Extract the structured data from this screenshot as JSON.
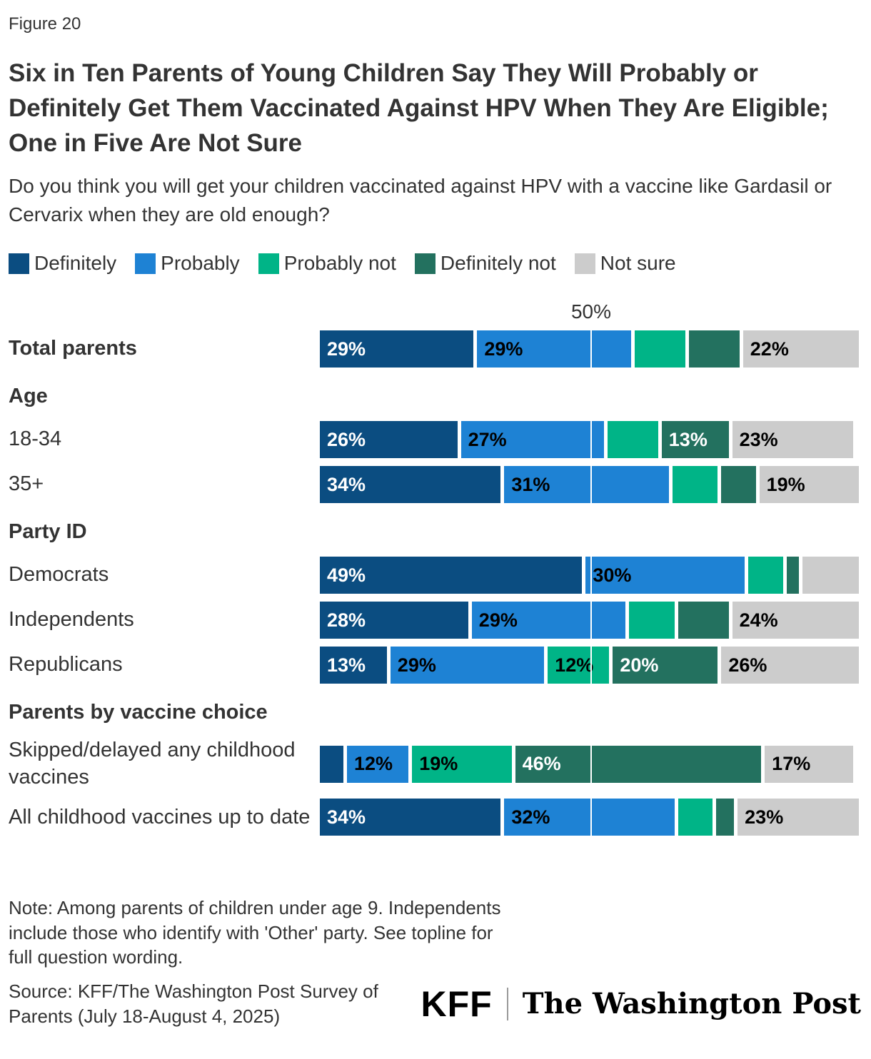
{
  "figure_label": "Figure 20",
  "title": "Six in Ten Parents of Young Children Say They Will Probably or Definitely Get Them Vaccinated Against HPV When They Are Eligible; One in Five Are Not Sure",
  "subtitle": "Do you think you will get your children vaccinated against HPV with a vaccine like Gardasil or Cervarix when they are old enough?",
  "legend": [
    {
      "label": "Definitely",
      "color": "#0b4d81"
    },
    {
      "label": "Probably",
      "color": "#1e82d4"
    },
    {
      "label": "Probably not",
      "color": "#00b487"
    },
    {
      "label": "Definitely not",
      "color": "#23715f"
    },
    {
      "label": "Not sure",
      "color": "#cccccc"
    }
  ],
  "colors": {
    "series": [
      "#0b4d81",
      "#1e82d4",
      "#00b487",
      "#23715f",
      "#cccccc"
    ],
    "series_keys": [
      "definitely",
      "probably",
      "probably-not",
      "definitely-not",
      "not-sure"
    ],
    "label_colors": [
      "#ffffff",
      "#000000",
      "#000000",
      "#ffffff",
      "#000000"
    ]
  },
  "axis": {
    "gridline_label": "50%",
    "gridline_value": 50
  },
  "chart_data": {
    "type": "bar",
    "stacked": true,
    "orientation": "horizontal",
    "x_max": 100,
    "gridline_at": 50,
    "series_names": [
      "Definitely",
      "Probably",
      "Probably not",
      "Definitely not",
      "Not sure"
    ],
    "sections": [
      {
        "header": null,
        "rows": [
          {
            "label": "Total parents",
            "bold": true,
            "values": [
              29,
              29,
              10,
              10,
              22
            ],
            "display_labels": [
              "29%",
              "29%",
              "",
              "",
              "22%"
            ]
          }
        ]
      },
      {
        "header": "Age",
        "rows": [
          {
            "label": "18-34",
            "bold": false,
            "values": [
              26,
              27,
              10,
              13,
              23
            ],
            "display_labels": [
              "26%",
              "27%",
              "",
              "13%",
              "23%"
            ]
          },
          {
            "label": "35+",
            "bold": false,
            "values": [
              34,
              31,
              9,
              7,
              19
            ],
            "display_labels": [
              "34%",
              "31%",
              "",
              "",
              "19%"
            ]
          }
        ]
      },
      {
        "header": "Party ID",
        "rows": [
          {
            "label": "Democrats",
            "bold": false,
            "values": [
              49,
              30,
              7,
              3,
              11
            ],
            "display_labels": [
              "49%",
              "30%",
              "",
              "",
              ""
            ]
          },
          {
            "label": "Independents",
            "bold": false,
            "values": [
              28,
              29,
              9,
              10,
              24
            ],
            "display_labels": [
              "28%",
              "29%",
              "",
              "",
              "24%"
            ]
          },
          {
            "label": "Republicans",
            "bold": false,
            "values": [
              13,
              29,
              12,
              20,
              26
            ],
            "display_labels": [
              "13%",
              "29%",
              "12%",
              "20%",
              "26%"
            ]
          }
        ]
      },
      {
        "header": "Parents by vaccine choice",
        "rows": [
          {
            "label": "Skipped/delayed any childhood vaccines",
            "bold": false,
            "values": [
              5,
              12,
              19,
              46,
              17
            ],
            "display_labels": [
              "",
              "12%",
              "19%",
              "46%",
              "17%"
            ]
          },
          {
            "label": "All childhood vaccines up to date",
            "bold": false,
            "values": [
              34,
              32,
              7,
              4,
              23
            ],
            "display_labels": [
              "34%",
              "32%",
              "",
              "",
              "23%"
            ]
          }
        ]
      }
    ]
  },
  "note": "Note: Among parents of children under age 9. Independents include those who identify with 'Other' party. See topline for full question wording.",
  "source": "Source: KFF/The Washington Post Survey of Parents (July 18-August 4, 2025)",
  "logos": {
    "kff": "KFF",
    "wapo": "The Washington Post"
  }
}
